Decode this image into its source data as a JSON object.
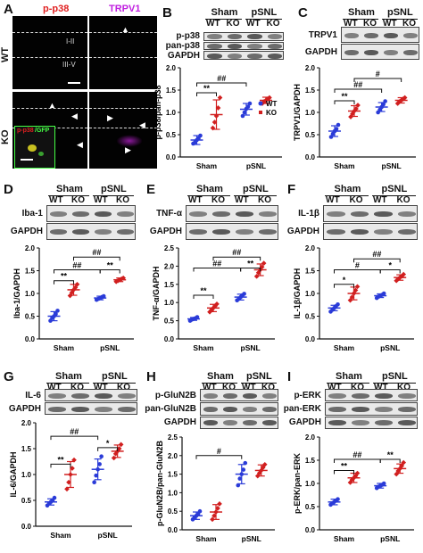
{
  "colors": {
    "wt": "#2a3bd8",
    "ko": "#d11f1f",
    "p_p38": "#e02020",
    "trpv1": "#c020e0",
    "inset_frame": "#44ff44"
  },
  "panels": {
    "A": {
      "letter": "A",
      "title_left": "p-p38",
      "title_right": "TRPV1",
      "row_wt": "WT",
      "row_ko": "KO",
      "layer_1": "I-II",
      "layer_2": "III-V",
      "inset_label_red": "p-p38",
      "inset_label_green": "/GFP"
    },
    "B": {
      "letter": "B",
      "sham": "Sham",
      "psnl": "pSNL",
      "wt": "WT",
      "ko": "KO",
      "blots": [
        "p-p38",
        "pan-p38",
        "GAPDH"
      ],
      "ylabel": "p-p38/pan-p38",
      "sig": [
        "**",
        "##"
      ]
    },
    "C": {
      "letter": "C",
      "sham": "Sham",
      "psnl": "pSNL",
      "wt": "WT",
      "ko": "KO",
      "blots": [
        "TRPV1",
        "GAPDH"
      ],
      "ylabel": "TRPV1/GAPDH",
      "sig": [
        "**",
        "##",
        "#"
      ]
    },
    "D": {
      "letter": "D",
      "sham": "Sham",
      "psnl": "pSNL",
      "wt": "WT",
      "ko": "KO",
      "blots": [
        "Iba-1",
        "GAPDH"
      ],
      "ylabel": "Iba-1/GAPDH",
      "sig": [
        "**",
        "##",
        "**",
        "##"
      ]
    },
    "E": {
      "letter": "E",
      "sham": "Sham",
      "psnl": "pSNL",
      "wt": "WT",
      "ko": "KO",
      "blots": [
        "TNF-α",
        "GAPDH"
      ],
      "ylabel": "TNF-α/GAPDH",
      "sig": [
        "**",
        "##",
        "**",
        "##"
      ]
    },
    "F": {
      "letter": "F",
      "sham": "Sham",
      "psnl": "pSNL",
      "wt": "WT",
      "ko": "KO",
      "blots": [
        "IL-1β",
        "GAPDH"
      ],
      "ylabel": "IL-1β/GAPDH",
      "sig": [
        "*",
        "#",
        "*",
        "##"
      ]
    },
    "G": {
      "letter": "G",
      "sham": "Sham",
      "psnl": "pSNL",
      "wt": "WT",
      "ko": "KO",
      "blots": [
        "IL-6",
        "GAPDH"
      ],
      "ylabel": "IL-6/GAPDH",
      "sig": [
        "**",
        "*",
        "##"
      ]
    },
    "H": {
      "letter": "H",
      "sham": "Sham",
      "psnl": "pSNL",
      "wt": "WT",
      "ko": "KO",
      "blots": [
        "p-GluN2B",
        "pan-GluN2B",
        "GAPDH"
      ],
      "ylabel": "p-GluN2B/pan-GluN2B",
      "sig": [
        "#"
      ]
    },
    "I": {
      "letter": "I",
      "sham": "Sham",
      "psnl": "pSNL",
      "wt": "WT",
      "ko": "KO",
      "blots": [
        "p-ERK",
        "pan-ERK",
        "GAPDH"
      ],
      "ylabel": "p-ERK/pan-ERK",
      "sig": [
        "**",
        "##",
        "**"
      ]
    }
  },
  "legend": {
    "wt": "WT",
    "ko": "KO"
  },
  "chart_data": [
    {
      "panel": "B",
      "type": "scatter",
      "ylabel": "p-p38/pan-p38",
      "ylim": [
        0,
        2.0
      ],
      "yticks": [
        "0.0",
        "0.5",
        "1.0",
        "1.5",
        "2.0"
      ],
      "categories": [
        "Sham",
        "pSNL"
      ],
      "legend": "top-right",
      "series": [
        {
          "name": "WT",
          "means": [
            0.38,
            1.07
          ],
          "sd": [
            0.1,
            0.13
          ],
          "points": [
            [
              0.3,
              0.33,
              0.38,
              0.42,
              0.48
            ],
            [
              0.92,
              1.0,
              1.08,
              1.13,
              1.2
            ]
          ]
        },
        {
          "name": "KO",
          "means": [
            0.95,
            1.27
          ],
          "sd": [
            0.33,
            0.07
          ],
          "points": [
            [
              0.65,
              0.78,
              0.92,
              1.1,
              1.33
            ],
            [
              1.2,
              1.24,
              1.27,
              1.3,
              1.33
            ]
          ]
        }
      ]
    },
    {
      "panel": "C",
      "type": "scatter",
      "ylabel": "TRPV1/GAPDH",
      "ylim": [
        0,
        2.0
      ],
      "yticks": [
        "0.0",
        "0.5",
        "1.0",
        "1.5",
        "2.0"
      ],
      "categories": [
        "Sham",
        "pSNL"
      ],
      "legend": "none",
      "series": [
        {
          "name": "WT",
          "means": [
            0.58,
            1.12
          ],
          "sd": [
            0.12,
            0.1
          ],
          "points": [
            [
              0.45,
              0.52,
              0.58,
              0.63,
              0.72
            ],
            [
              1.0,
              1.06,
              1.12,
              1.18,
              1.25
            ]
          ]
        },
        {
          "name": "KO",
          "means": [
            1.03,
            1.27
          ],
          "sd": [
            0.12,
            0.06
          ],
          "points": [
            [
              0.9,
              0.97,
              1.03,
              1.08,
              1.16
            ],
            [
              1.2,
              1.24,
              1.27,
              1.3,
              1.33
            ]
          ]
        }
      ]
    },
    {
      "panel": "D",
      "type": "scatter",
      "ylabel": "Iba-1/GAPDH",
      "ylim": [
        0,
        2.0
      ],
      "yticks": [
        "0.0",
        "0.5",
        "1.0",
        "1.5",
        "2.0"
      ],
      "categories": [
        "Sham",
        "pSNL"
      ],
      "legend": "none",
      "series": [
        {
          "name": "WT",
          "means": [
            0.5,
            0.9
          ],
          "sd": [
            0.1,
            0.04
          ],
          "points": [
            [
              0.4,
              0.46,
              0.5,
              0.55,
              0.62
            ],
            [
              0.86,
              0.88,
              0.9,
              0.92,
              0.94
            ]
          ]
        },
        {
          "name": "KO",
          "means": [
            1.08,
            1.3
          ],
          "sd": [
            0.12,
            0.04
          ],
          "points": [
            [
              0.95,
              1.02,
              1.08,
              1.13,
              1.2
            ],
            [
              1.26,
              1.28,
              1.3,
              1.32,
              1.34
            ]
          ]
        }
      ]
    },
    {
      "panel": "E",
      "type": "scatter",
      "ylabel": "TNF-α/GAPDH",
      "ylim": [
        0,
        2.5
      ],
      "yticks": [
        "0.0",
        "0.5",
        "1.0",
        "1.5",
        "2.0",
        "2.5"
      ],
      "categories": [
        "Sham",
        "pSNL"
      ],
      "legend": "none",
      "series": [
        {
          "name": "WT",
          "means": [
            0.55,
            1.15
          ],
          "sd": [
            0.04,
            0.08
          ],
          "points": [
            [
              0.5,
              0.53,
              0.55,
              0.57,
              0.6
            ],
            [
              1.06,
              1.1,
              1.15,
              1.2,
              1.24
            ]
          ]
        },
        {
          "name": "KO",
          "means": [
            0.85,
            1.9
          ],
          "sd": [
            0.1,
            0.16
          ],
          "points": [
            [
              0.74,
              0.8,
              0.85,
              0.9,
              0.96
            ],
            [
              1.72,
              1.82,
              1.9,
              1.98,
              2.08
            ]
          ]
        }
      ]
    },
    {
      "panel": "F",
      "type": "scatter",
      "ylabel": "IL-1β/GAPDH",
      "ylim": [
        0,
        2.0
      ],
      "yticks": [
        "0.0",
        "0.5",
        "1.0",
        "1.5",
        "2.0"
      ],
      "categories": [
        "Sham",
        "pSNL"
      ],
      "legend": "none",
      "series": [
        {
          "name": "WT",
          "means": [
            0.68,
            0.95
          ],
          "sd": [
            0.06,
            0.04
          ],
          "points": [
            [
              0.6,
              0.64,
              0.68,
              0.72,
              0.76
            ],
            [
              0.9,
              0.93,
              0.95,
              0.97,
              1.0
            ]
          ]
        },
        {
          "name": "KO",
          "means": [
            1.0,
            1.35
          ],
          "sd": [
            0.14,
            0.06
          ],
          "points": [
            [
              0.85,
              0.92,
              1.0,
              1.07,
              1.15
            ],
            [
              1.28,
              1.32,
              1.35,
              1.38,
              1.42
            ]
          ]
        }
      ]
    },
    {
      "panel": "G",
      "type": "scatter",
      "ylabel": "IL-6/GAPDH",
      "ylim": [
        0,
        2.0
      ],
      "yticks": [
        "0.0",
        "0.5",
        "1.0",
        "1.5",
        "2.0"
      ],
      "categories": [
        "Sham",
        "pSNL"
      ],
      "legend": "none",
      "series": [
        {
          "name": "WT",
          "means": [
            0.47,
            1.1
          ],
          "sd": [
            0.06,
            0.2
          ],
          "points": [
            [
              0.4,
              0.44,
              0.47,
              0.5,
              0.55
            ],
            [
              0.85,
              0.98,
              1.1,
              1.2,
              1.35
            ]
          ]
        },
        {
          "name": "KO",
          "means": [
            1.0,
            1.45
          ],
          "sd": [
            0.25,
            0.12
          ],
          "points": [
            [
              0.72,
              0.85,
              1.0,
              1.12,
              1.28
            ],
            [
              1.32,
              1.4,
              1.45,
              1.5,
              1.58
            ]
          ]
        }
      ]
    },
    {
      "panel": "H",
      "type": "scatter",
      "ylabel": "p-GluN2B/pan-GluN2B",
      "ylim": [
        0,
        2.5
      ],
      "yticks": [
        "0.0",
        "0.5",
        "1.0",
        "1.5",
        "2.0",
        "2.5"
      ],
      "categories": [
        "Sham",
        "pSNL"
      ],
      "legend": "none",
      "series": [
        {
          "name": "WT",
          "means": [
            0.38,
            1.5
          ],
          "sd": [
            0.1,
            0.26
          ],
          "points": [
            [
              0.28,
              0.34,
              0.38,
              0.42,
              0.5
            ],
            [
              1.2,
              1.38,
              1.5,
              1.62,
              1.8
            ]
          ]
        },
        {
          "name": "KO",
          "means": [
            0.48,
            1.6
          ],
          "sd": [
            0.2,
            0.15
          ],
          "points": [
            [
              0.28,
              0.38,
              0.48,
              0.58,
              0.7
            ],
            [
              1.45,
              1.53,
              1.6,
              1.68,
              1.76
            ]
          ]
        }
      ]
    },
    {
      "panel": "I",
      "type": "scatter",
      "ylabel": "p-ERK/pan-ERK",
      "ylim": [
        0,
        2.0
      ],
      "yticks": [
        "0.0",
        "0.5",
        "1.0",
        "1.5",
        "2.0"
      ],
      "categories": [
        "Sham",
        "pSNL"
      ],
      "legend": "none",
      "series": [
        {
          "name": "WT",
          "means": [
            0.6,
            0.95
          ],
          "sd": [
            0.06,
            0.05
          ],
          "points": [
            [
              0.54,
              0.57,
              0.6,
              0.63,
              0.66
            ],
            [
              0.9,
              0.93,
              0.95,
              0.97,
              1.0
            ]
          ]
        },
        {
          "name": "KO",
          "means": [
            1.12,
            1.32
          ],
          "sd": [
            0.1,
            0.1
          ],
          "points": [
            [
              1.02,
              1.08,
              1.12,
              1.16,
              1.22
            ],
            [
              1.2,
              1.27,
              1.32,
              1.38,
              1.45
            ]
          ]
        }
      ]
    }
  ]
}
